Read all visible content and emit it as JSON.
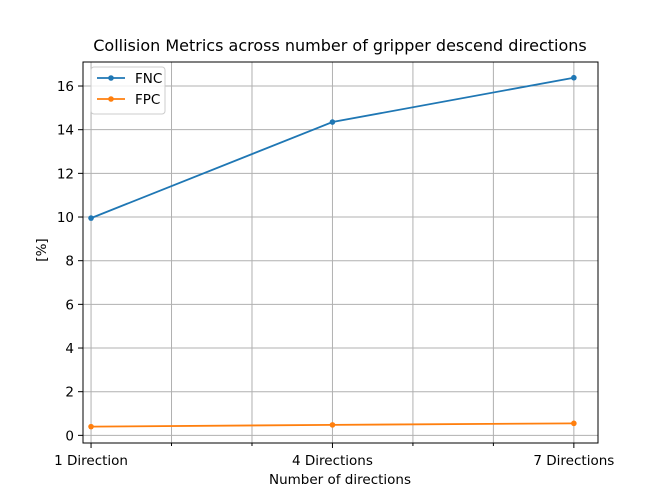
{
  "chart_data": {
    "type": "line",
    "title": "Collision Metrics across number of gripper descend directions",
    "xlabel": "Number of directions",
    "ylabel": "[%]",
    "x": [
      1,
      2,
      3,
      4,
      5,
      6,
      7
    ],
    "x_tick_labels": [
      {
        "x": 1,
        "label": "1 Direction"
      },
      {
        "x": 4,
        "label": "4 Directions"
      },
      {
        "x": 7,
        "label": "7 Directions"
      }
    ],
    "minor_x_ticks": [
      2,
      3,
      5,
      6
    ],
    "xlim": [
      0.9,
      7.3
    ],
    "ylim": [
      -0.35,
      17.1
    ],
    "y_ticks": [
      0,
      2,
      4,
      6,
      8,
      10,
      12,
      14,
      16
    ],
    "y_tick_labels": [
      "0",
      "2",
      "4",
      "6",
      "8",
      "10",
      "12",
      "14",
      "16"
    ],
    "grid": true,
    "legend_position": "upper-left",
    "series": [
      {
        "name": "FNC",
        "color": "#1f77b4",
        "points": [
          [
            1,
            9.95
          ],
          [
            4,
            14.35
          ],
          [
            7,
            16.38
          ]
        ]
      },
      {
        "name": "FPC",
        "color": "#ff7f0e",
        "points": [
          [
            1,
            0.4
          ],
          [
            4,
            0.48
          ],
          [
            7,
            0.55
          ]
        ]
      }
    ]
  }
}
